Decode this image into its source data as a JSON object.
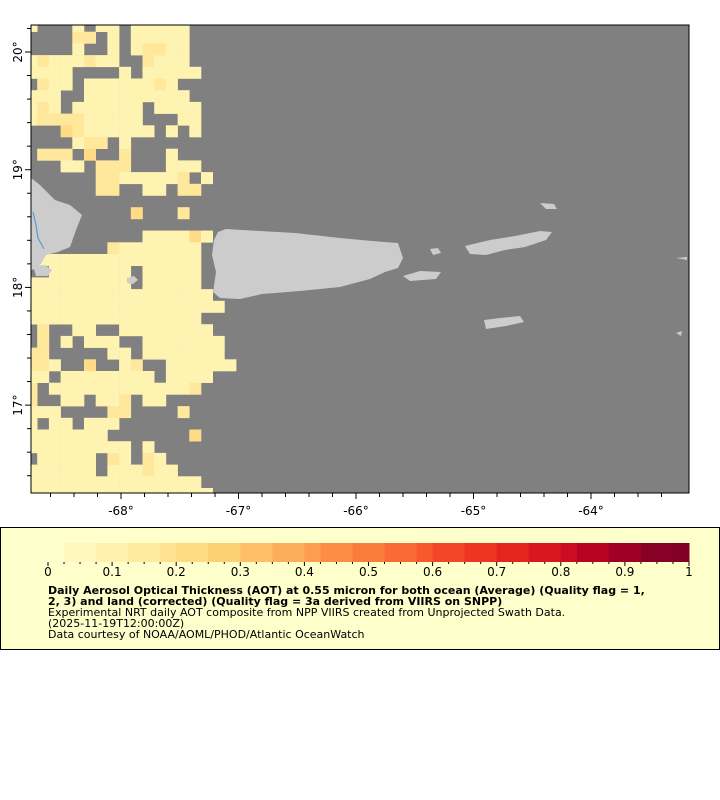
{
  "chart_data": {
    "type": "heatmap",
    "map": {
      "lon_range": [
        -68.77,
        -63.17
      ],
      "lat_range": [
        16.25,
        20.23
      ],
      "x_ticks": [
        -68,
        -67,
        -66,
        -65,
        -64
      ],
      "x_tick_labels": [
        "-68°",
        "-67°",
        "-66°",
        "-65°",
        "-64°"
      ],
      "y_ticks": [
        17,
        18,
        19,
        20
      ],
      "y_tick_labels": [
        "17°",
        "18°",
        "19°",
        "20°"
      ],
      "no_data_color": "#808080",
      "land_color": "#cccccc",
      "river_color": "#5b9bd5",
      "grid_level_values": {
        "1": 0.05,
        "2": 0.1,
        "3": 0.15
      },
      "grid_level_colors": {
        "1": "#fff3b2",
        "2": "#ffe89c",
        "3": "#fedb84"
      },
      "grid_rows": [
        "1...1.11.11111....",
        "....22.1.11111....",
        "....1..1.12211....",
        "12111211..2111....",
        "1111....1.11111...",
        ".211.11111121.....",
        "111..111111111....",
        "121.111111.1111...",
        "1222211111...11...",
        "...32111111.1.1...",
        "....122.1.........",
        ".222.3..2...1.....",
        "...11.222...111...",
        "......22111112.1..",
        "......22..11.22...",
        "..................",
        ".........3...2....",
        "..................",
        "..........111131..",
        ".......21111111...",
        ".11111111111111...",
        "..1111111.11111...",
        "111111111.11111...",
        "1111111111111111..",
        "11111111111111111.",
        "111111111111111...",
        ".2..11..11111111..",
        ".2.1.111..1111111.",
        "22.....11.1111111.",
        "221..3..12..111111",
        "11.11111111.1111..",
        "2.1111111111112...",
        "2..11.112.11......",
        "111....22....2....",
        "1.11.111..........",
        "1111111.......3...",
        "111111111.1.......",
        ".11111.21.21......",
        "111111.111211.....",
        "111111111111111...",
        "1111111111111111.."
      ]
    },
    "colorbar": {
      "range": [
        0,
        1
      ],
      "tick_labels": [
        "0",
        "0.1",
        "0.2",
        "0.3",
        "0.4",
        "0.5",
        "0.6",
        "0.7",
        "0.8",
        "0.9",
        "1"
      ],
      "colors": [
        "#ffffcc",
        "#fff7bc",
        "#fff0ad",
        "#ffe99e",
        "#fee290",
        "#fedb82",
        "#fed075",
        "#febf68",
        "#fdae5b",
        "#fd9e4f",
        "#fd8d44",
        "#fc7c3c",
        "#fb6a34",
        "#f8582e",
        "#f44528",
        "#ee3423",
        "#e4241f",
        "#d9171f",
        "#cc0c22",
        "#b80325",
        "#a00026",
        "#880026",
        "#800026"
      ]
    },
    "title_line1": "Daily Aerosol Optical Thickness (AOT) at 0.55 micron for both ocean (Average) (Quality flag = 1,",
    "title_line2": "2, 3) and land (corrected) (Quality flag = 3a derived from VIIRS on SNPP)",
    "subtitle": "Experimental NRT daily AOT composite from NPP VIIRS created from Unprojected Swath Data.",
    "time": "(2025-11-19T12:00:00Z)",
    "credit": "Data courtesy of NOAA/AOML/PHOD/Atlantic OceanWatch"
  }
}
